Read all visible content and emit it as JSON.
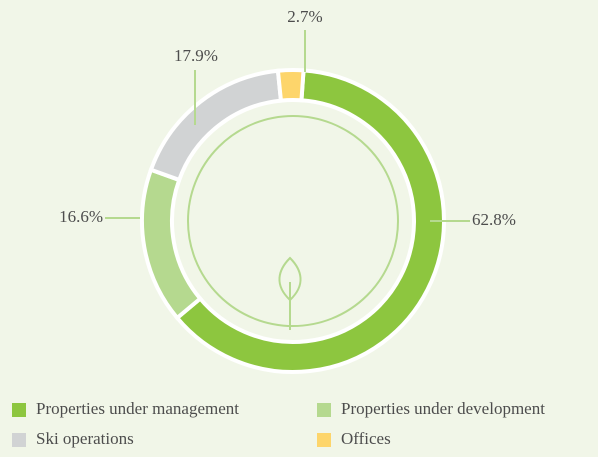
{
  "chart_data": {
    "type": "donut",
    "categories": [
      "Properties under management",
      "Properties under development",
      "Ski operations",
      "Offices"
    ],
    "values": [
      62.8,
      16.6,
      17.9,
      2.7
    ],
    "value_labels": [
      "62.8%",
      "16.6%",
      "17.9%",
      "2.7%"
    ],
    "colors": [
      "#8dc63f",
      "#b5d98f",
      "#d1d3d4",
      "#fdd56b"
    ],
    "legend": "bottom"
  }
}
